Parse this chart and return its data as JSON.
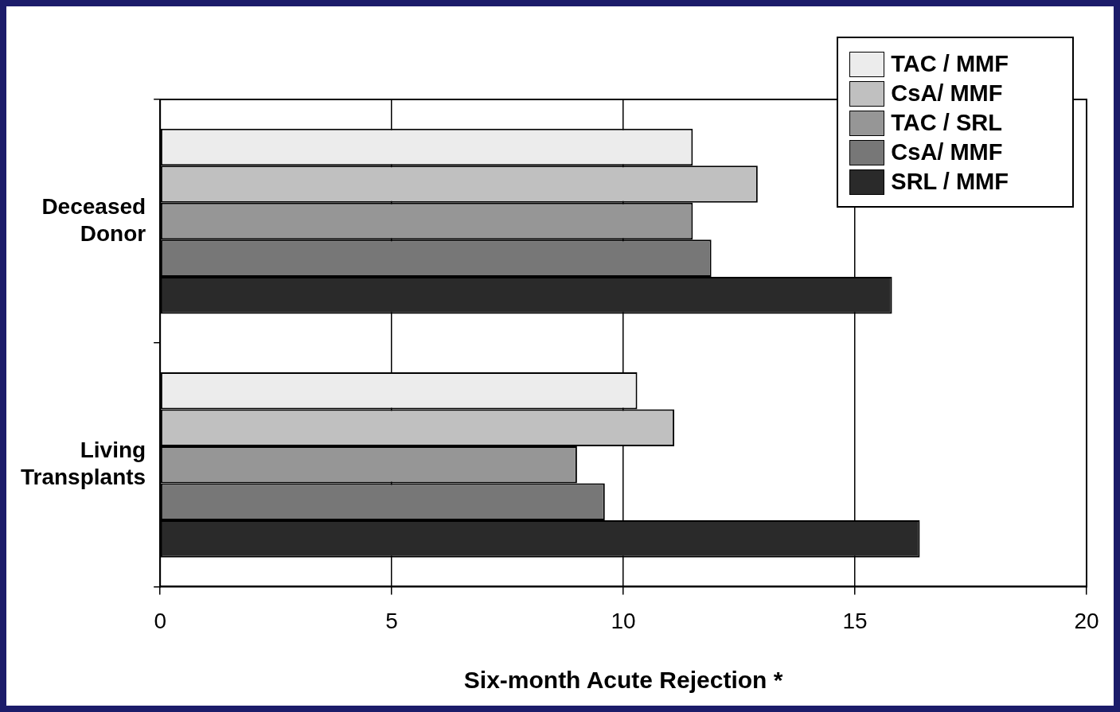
{
  "chart_data": {
    "type": "bar",
    "orientation": "horizontal",
    "xlabel": "Six-month Acute Rejection *",
    "categories": [
      "Deceased Donor",
      "Living Transplants"
    ],
    "series": [
      {
        "name": "TAC / MMF",
        "color": "#ececec",
        "values": [
          11.5,
          10.3
        ]
      },
      {
        "name": "CsA/ MMF",
        "color": "#c0c0c0",
        "values": [
          12.9,
          11.1
        ]
      },
      {
        "name": "TAC / SRL",
        "color": "#969696",
        "values": [
          11.5,
          9.0
        ]
      },
      {
        "name": "CsA/ MMF",
        "color": "#777777",
        "values": [
          11.9,
          9.6
        ]
      },
      {
        "name": "SRL / MMF",
        "color": "#2a2a2a",
        "values": [
          15.8,
          16.4
        ]
      }
    ],
    "xlim": [
      0,
      20
    ],
    "xticks": [
      0,
      5,
      10,
      15,
      20
    ],
    "grid": "x",
    "legend": "top right"
  }
}
